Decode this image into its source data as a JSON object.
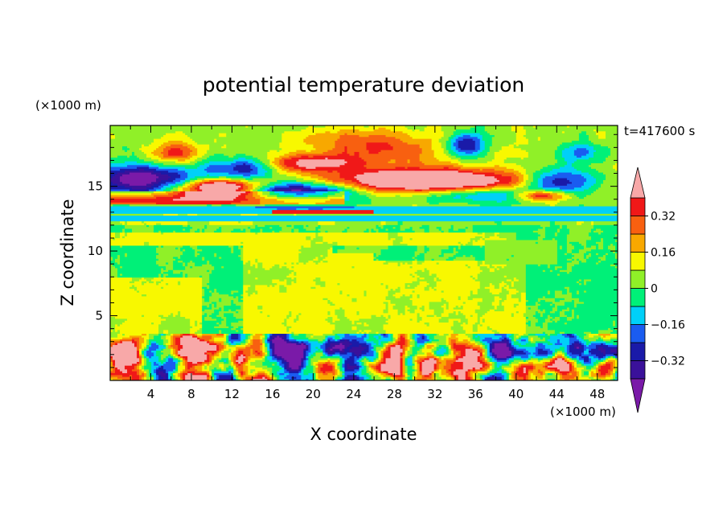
{
  "chart_data": {
    "type": "heatmap",
    "title": "potential temperature deviation",
    "xlabel": "X coordinate",
    "ylabel": "Z coordinate",
    "x_unit": "(×1000 m)",
    "y_unit": "(×1000 m)",
    "time_label": "t=417600 s",
    "xlim": [
      0,
      50
    ],
    "ylim": [
      0,
      19.7
    ],
    "x_ticks": [
      "4",
      "8",
      "12",
      "16",
      "20",
      "24",
      "28",
      "32",
      "36",
      "40",
      "44",
      "48"
    ],
    "y_ticks": [
      "5",
      "10",
      "15"
    ],
    "colorbar": {
      "levels": [
        -0.4,
        -0.32,
        -0.24,
        -0.16,
        -0.08,
        0,
        0.08,
        0.16,
        0.24,
        0.32,
        0.4
      ],
      "tick_labels": [
        "0.32",
        "0.16",
        "0",
        "−0.16",
        "−0.32"
      ],
      "colors": {
        "below": "#7a1aa8",
        "bins": [
          "#3a119a",
          "#1a1aa8",
          "#1a5cf0",
          "#00d0f8",
          "#00f078",
          "#90f028",
          "#f8f800",
          "#f8a800",
          "#f86010",
          "#f01818"
        ],
        "above": "#f8a8a8"
      }
    },
    "field_regions": [
      {
        "name": "upper-background",
        "x": [
          0,
          50
        ],
        "z": [
          12.0,
          19.7
        ],
        "value": 0.05
      },
      {
        "name": "mid-troposphere",
        "x": [
          0,
          50
        ],
        "z": [
          3.6,
          12.0
        ],
        "value": 0.01
      },
      {
        "name": "stable-band-1",
        "x": [
          0,
          50
        ],
        "z": [
          13.0,
          13.4
        ],
        "value": -0.1
      },
      {
        "name": "stable-band-2",
        "x": [
          0,
          50
        ],
        "z": [
          12.4,
          12.8
        ],
        "value": -0.1
      },
      {
        "name": "upper-warm-1",
        "x": [
          8,
          14
        ],
        "z": [
          14.5,
          15.6
        ],
        "value": 0.45
      },
      {
        "name": "upper-warm-2",
        "x": [
          23,
          40
        ],
        "z": [
          14.2,
          16.5
        ],
        "value": 0.45
      },
      {
        "name": "upper-cold-1",
        "x": [
          0,
          7
        ],
        "z": [
          14.5,
          16.5
        ],
        "value": -0.45
      },
      {
        "name": "upper-cold-2",
        "x": [
          14,
          24
        ],
        "z": [
          14.2,
          16.0
        ],
        "value": -0.35
      },
      {
        "name": "upper-cold-3",
        "x": [
          40,
          50
        ],
        "z": [
          14.0,
          16.3
        ],
        "value": -0.35
      },
      {
        "name": "warm-layer-13km",
        "x": [
          0,
          23
        ],
        "z": [
          13.6,
          14.4
        ],
        "value": 0.45
      },
      {
        "name": "boundary-layer",
        "x": [
          0,
          50
        ],
        "z": [
          0,
          3.6
        ],
        "value": 0.0
      }
    ]
  }
}
